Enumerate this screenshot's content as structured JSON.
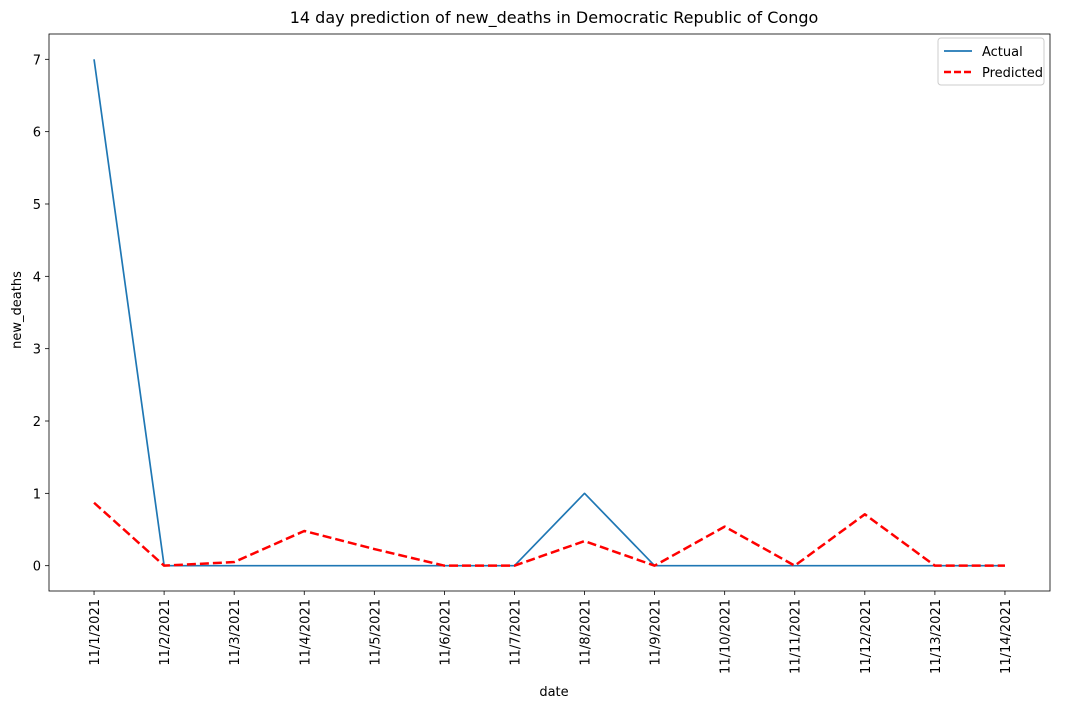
{
  "chart_data": {
    "type": "line",
    "title": "14 day prediction of new_deaths in Democratic Republic of Congo",
    "xlabel": "date",
    "ylabel": "new_deaths",
    "ylim": [
      -0.35,
      7.35
    ],
    "yticks": [
      0,
      1,
      2,
      3,
      4,
      5,
      6,
      7
    ],
    "categories": [
      "11/1/2021",
      "11/2/2021",
      "11/3/2021",
      "11/4/2021",
      "11/5/2021",
      "11/6/2021",
      "11/7/2021",
      "11/8/2021",
      "11/9/2021",
      "11/10/2021",
      "11/11/2021",
      "11/12/2021",
      "11/13/2021",
      "11/14/2021"
    ],
    "series": [
      {
        "name": "Actual",
        "color": "#1f77b4",
        "style": "solid",
        "values": [
          7,
          0,
          0,
          0,
          0,
          0,
          0,
          1,
          0,
          0,
          0,
          0,
          0,
          0
        ]
      },
      {
        "name": "Predicted",
        "color": "#ff0000",
        "style": "dashed",
        "values": [
          0.87,
          0.0,
          0.05,
          0.48,
          0.23,
          0.0,
          0.0,
          0.34,
          0.0,
          0.54,
          0.0,
          0.71,
          0.0,
          0.0
        ]
      }
    ],
    "legend": "top-right",
    "grid": false
  }
}
